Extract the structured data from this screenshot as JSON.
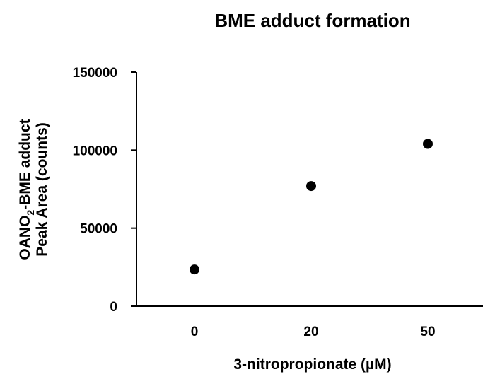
{
  "chart_data": {
    "type": "scatter",
    "title": "BME adduct formation",
    "xlabel": "3-nitropropionate (µM)",
    "ylabel_line1_main": "OANO",
    "ylabel_line1_sub": "2",
    "ylabel_line1_rest": "-BME adduct",
    "ylabel_line2": "Peak Area  (counts)",
    "categories": [
      "0",
      "20",
      "50"
    ],
    "values": [
      23500,
      77000,
      104000
    ],
    "ylim": [
      0,
      150000
    ],
    "yticks": [
      "0",
      "50000",
      "100000",
      "150000"
    ],
    "ytick_values": [
      0,
      50000,
      100000,
      150000
    ],
    "grid": false,
    "marker_color": "#000000"
  }
}
